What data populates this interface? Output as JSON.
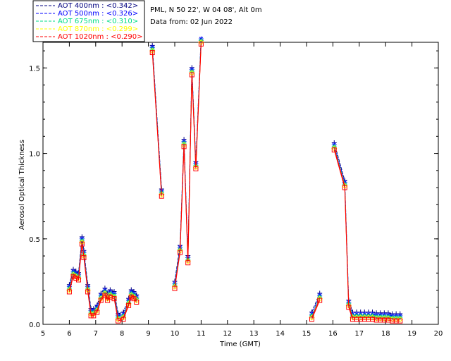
{
  "chart_data": {
    "type": "line",
    "xlabel": "Time (GMT)",
    "ylabel": "Aerosol Optical Thickness",
    "xlim": [
      5,
      20
    ],
    "ylim": [
      0.0,
      1.65
    ],
    "x_ticks": [
      5,
      6,
      7,
      8,
      9,
      10,
      11,
      12,
      13,
      14,
      15,
      16,
      17,
      18,
      19,
      20
    ],
    "y_ticks": [
      0.0,
      0.5,
      1.0,
      1.5
    ],
    "y_tick_labels": [
      "0.0",
      "0.5",
      "1.0",
      "1.5"
    ],
    "info": {
      "location": "PML, N 50 22', W 04 08', Alt 0m",
      "date": "Data from: 02 Jun 2022"
    },
    "legend_position": "top-left",
    "series": [
      {
        "name": "AOT  400nm : <0.342>",
        "color": "#000080",
        "marker": "plus",
        "offset": 0.032
      },
      {
        "name": "AOT  500nm : <0.326>",
        "color": "#0000ff",
        "marker": "asterisk",
        "offset": 0.02
      },
      {
        "name": "AOT  675nm : <0.310>",
        "color": "#00dd88",
        "marker": "asterisk",
        "offset": 0.01
      },
      {
        "name": "AOT  870nm : <0.299>",
        "color": "#ffff00",
        "marker": "diamond",
        "offset": 0.0
      },
      {
        "name": "AOT 1020nm : <0.290>",
        "color": "#ff0000",
        "marker": "square",
        "offset": -0.01
      }
    ],
    "base_points": [
      [
        6.0,
        0.2
      ],
      [
        6.15,
        0.29
      ],
      [
        6.25,
        0.28
      ],
      [
        6.35,
        0.27
      ],
      [
        6.48,
        0.48
      ],
      [
        6.55,
        0.4
      ],
      [
        6.7,
        0.2
      ],
      [
        6.82,
        0.06
      ],
      [
        6.92,
        0.06
      ],
      [
        7.05,
        0.08
      ],
      [
        7.2,
        0.15
      ],
      [
        7.35,
        0.18
      ],
      [
        7.45,
        0.15
      ],
      [
        7.55,
        0.17
      ],
      [
        7.7,
        0.16
      ],
      [
        7.85,
        0.03
      ],
      [
        8.05,
        0.04
      ],
      [
        8.25,
        0.12
      ],
      [
        8.35,
        0.17
      ],
      [
        8.45,
        0.16
      ],
      [
        8.55,
        0.14
      ],
      [
        9.15,
        1.6
      ],
      [
        9.5,
        0.76
      ],
      [
        10.0,
        0.22
      ],
      [
        10.2,
        0.43
      ],
      [
        10.35,
        1.05
      ],
      [
        10.5,
        0.37
      ],
      [
        10.65,
        1.47
      ],
      [
        10.8,
        0.92
      ],
      [
        11.0,
        1.65
      ],
      [
        15.2,
        0.04
      ],
      [
        15.5,
        0.15
      ],
      [
        16.05,
        1.03
      ],
      [
        16.45,
        0.81
      ],
      [
        16.6,
        0.11
      ],
      [
        16.75,
        0.04
      ],
      [
        16.9,
        0.04
      ],
      [
        17.05,
        0.04
      ],
      [
        17.2,
        0.04
      ],
      [
        17.35,
        0.04
      ],
      [
        17.5,
        0.04
      ],
      [
        17.65,
        0.035
      ],
      [
        17.8,
        0.035
      ],
      [
        17.95,
        0.035
      ],
      [
        18.1,
        0.035
      ],
      [
        18.25,
        0.03
      ],
      [
        18.4,
        0.03
      ],
      [
        18.55,
        0.03
      ]
    ],
    "gaps_after_x": [
      8.55,
      9.5,
      11.0,
      15.5
    ],
    "line_color": "#ff0000",
    "grid": false
  }
}
